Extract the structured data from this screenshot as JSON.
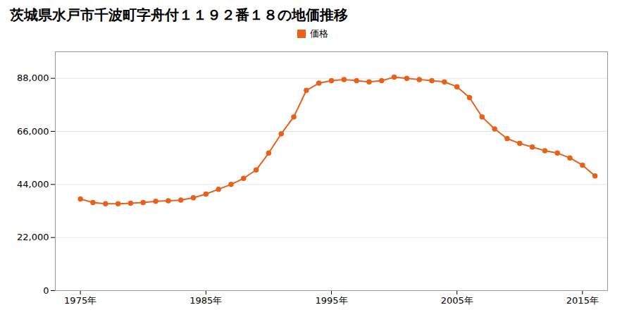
{
  "chart_data": {
    "type": "line",
    "title": "茨城県水戸市千波町字舟付１１９２番１８の地価推移",
    "x": [
      1975,
      1976,
      1977,
      1978,
      1979,
      1980,
      1981,
      1982,
      1983,
      1984,
      1985,
      1986,
      1987,
      1988,
      1989,
      1990,
      1991,
      1992,
      1993,
      1994,
      1995,
      1996,
      1997,
      1998,
      1999,
      2000,
      2001,
      2002,
      2003,
      2004,
      2005,
      2006,
      2007,
      2008,
      2009,
      2010,
      2011,
      2012,
      2013,
      2014,
      2015,
      2016
    ],
    "series": [
      {
        "name": "価格",
        "color": "#e8611a",
        "marker": "circle",
        "values": [
          38000,
          36500,
          36000,
          36000,
          36200,
          36500,
          37000,
          37200,
          37500,
          38500,
          40000,
          42000,
          44000,
          46500,
          50000,
          57000,
          65000,
          72000,
          83000,
          86000,
          87000,
          87500,
          87000,
          86500,
          87000,
          88500,
          88000,
          87500,
          87000,
          86500,
          84500,
          80000,
          72000,
          67000,
          63000,
          61000,
          59500,
          58000,
          57000,
          55000,
          52000,
          47500
        ]
      }
    ],
    "xlim": [
      1973,
      2017
    ],
    "xticks": [
      {
        "value": 1975,
        "label": "1975年"
      },
      {
        "value": 1985,
        "label": "1985年"
      },
      {
        "value": 1995,
        "label": "1995年"
      },
      {
        "value": 2005,
        "label": "2005年"
      },
      {
        "value": 2015,
        "label": "2015年"
      }
    ],
    "ylim": [
      0,
      99000
    ],
    "yticks": [
      0,
      {
        "value": 22000,
        "label": "22,000"
      },
      {
        "value": 44000,
        "label": "44,000"
      },
      {
        "value": 66000,
        "label": "66,000"
      },
      {
        "value": 88000,
        "label": "88,000"
      }
    ],
    "grid": true,
    "legend": "top"
  }
}
